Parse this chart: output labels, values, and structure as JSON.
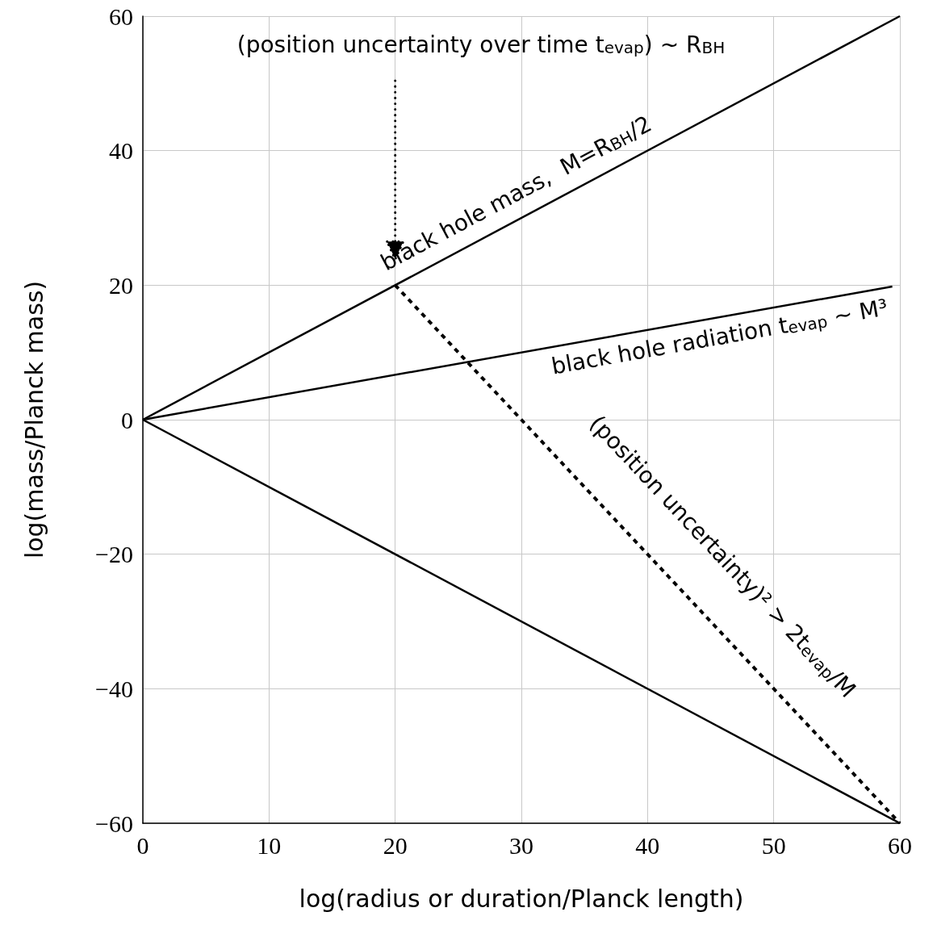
{
  "chart_data": {
    "type": "line",
    "xlabel": "log(radius or duration/Planck length)",
    "ylabel": "log(mass/Planck mass)",
    "xlim": [
      0,
      60
    ],
    "xticks": [
      0,
      10,
      20,
      30,
      40,
      50,
      60
    ],
    "ylim": [
      -60,
      60
    ],
    "yticks": [
      {
        "value": -60,
        "label": "−60"
      },
      {
        "value": -40,
        "label": "−40"
      },
      {
        "value": -20,
        "label": "−20"
      },
      0,
      20,
      40,
      60
    ],
    "grid": true,
    "marker": "none",
    "line_style": "solid",
    "series": [
      {
        "name": "black hole mass,  M=R$_{BH}$/2",
        "color": "#000000",
        "x": [
          0,
          60
        ],
        "values": [
          0,
          60
        ]
      },
      {
        "name": "black hole radiation t$_{evap}$ ~ M³",
        "color": "#000000",
        "x": [
          0,
          59.4
        ],
        "values": [
          0,
          19.8
        ]
      },
      {
        "color": "#000000",
        "x": [
          0,
          60
        ],
        "values": [
          0,
          -60
        ]
      },
      {
        "name": "(position uncertainty)² > 2t$_{evap}$/M",
        "color": "#000000",
        "x": [
          20,
          60
        ],
        "values": [
          20,
          -60
        ],
        "line_style": "dashed"
      }
    ],
    "annotations": [
      "(position uncertainty over time t$_{evap}$) ~ R$_{BH}$"
    ]
  }
}
